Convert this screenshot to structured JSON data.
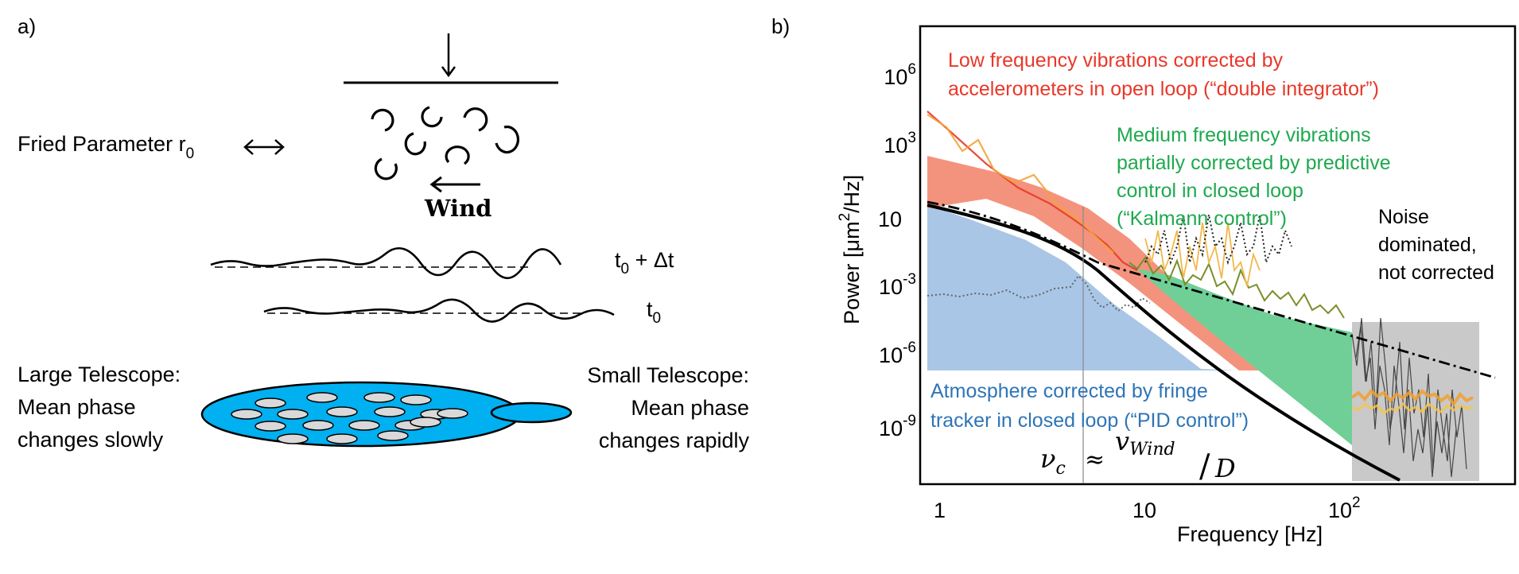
{
  "panel_a": {
    "label": "a)",
    "fried_label": "Fried Parameter r",
    "fried_sub": "0",
    "wind_label": "Wind",
    "t_dt_main": "t",
    "t_dt_sub": "0",
    "t_dt_suffix": " + Δt",
    "t0_main": "t",
    "t0_sub": "0",
    "large_telescope": [
      "Large Telescope:",
      "Mean phase",
      "changes slowly"
    ],
    "small_telescope": [
      "Small Telescope:",
      "Mean phase",
      "changes rapidly"
    ],
    "colors": {
      "telescope_fill": "#00b0f0",
      "subaperture_fill": "#d9d9d9"
    }
  },
  "panel_b": {
    "label": "b)",
    "y_axis_label_pre": "Power [μm",
    "y_axis_label_sup": "2",
    "y_axis_label_post": "/Hz]",
    "x_axis_label": "Frequency [Hz]",
    "y_ticks": [
      {
        "base": "10",
        "exp": "6"
      },
      {
        "base": "10",
        "exp": "3"
      },
      {
        "base": "10",
        "exp": ""
      },
      {
        "base": "10",
        "exp": "-3"
      },
      {
        "base": "10",
        "exp": "-6"
      },
      {
        "base": "10",
        "exp": "-9"
      }
    ],
    "x_ticks": [
      {
        "base": "1",
        "exp": ""
      },
      {
        "base": "10",
        "exp": ""
      },
      {
        "base": "10",
        "exp": "2"
      }
    ],
    "annotations": {
      "low": [
        "Low frequency vibrations corrected by",
        "accelerometers in open loop (“double integrator”)"
      ],
      "medium": [
        "Medium frequency vibrations",
        "partially corrected by predictive",
        "control in closed loop",
        "(“Kalmann control”)"
      ],
      "noise": [
        "Noise",
        "dominated,",
        "not corrected"
      ],
      "atmosphere": [
        "Atmosphere corrected by fringe",
        "tracker in closed loop (“PID control”)"
      ]
    },
    "formula": {
      "nu": "ν",
      "nu_sub": "c",
      "approx": "≈",
      "v": "v",
      "v_sub": "Wind",
      "slash": "/",
      "D": "D"
    },
    "colors": {
      "low": "#e8382a",
      "medium": "#1ea94e",
      "atmosphere": "#2e75b6",
      "low_band": "#f4937d",
      "medium_band": "#6fcf97",
      "atmosphere_band": "#a9c6e6",
      "noise_band": "#bfbfbf"
    }
  }
}
